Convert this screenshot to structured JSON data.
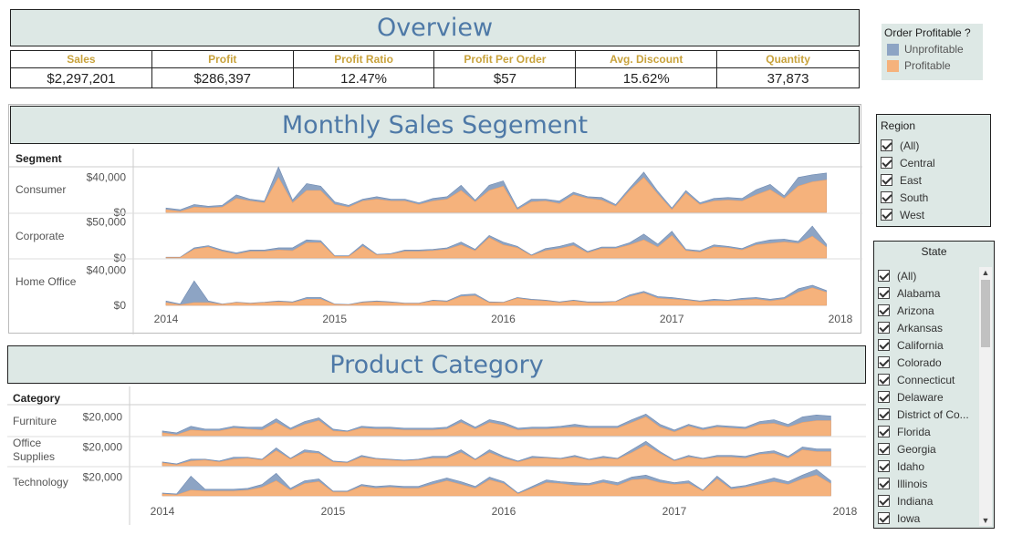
{
  "overview": {
    "title": "Overview"
  },
  "kpis": {
    "headers": [
      "Sales",
      "Profit",
      "Profit Ratio",
      "Profit Per Order",
      "Avg. Discount",
      "Quantity"
    ],
    "values": [
      "$2,297,201",
      "$286,397",
      "12.47%",
      "$57",
      "15.62%",
      "37,873"
    ]
  },
  "legend": {
    "title": "Order Profitable ?",
    "items": [
      {
        "label": "Unprofitable",
        "color": "#8da4c4"
      },
      {
        "label": "Profitable",
        "color": "#f5b27c"
      }
    ]
  },
  "region_filter": {
    "title": "Region",
    "items": [
      "(All)",
      "Central",
      "East",
      "South",
      "West"
    ]
  },
  "state_filter": {
    "title": "State",
    "items": [
      "(All)",
      "Alabama",
      "Arizona",
      "Arkansas",
      "California",
      "Colorado",
      "Connecticut",
      "Delaware",
      "District of Co...",
      "Florida",
      "Georgia",
      "Idaho",
      "Illinois",
      "Indiana",
      "Iowa"
    ]
  },
  "colors": {
    "banner_bg": "#dde8e5",
    "title_blue": "#4e79a7",
    "kpi_gold": "#c8a23b",
    "unprofitable": "#8da4c4",
    "profitable": "#f5b27c"
  },
  "chart_data": [
    {
      "type": "area",
      "title": "Monthly Sales Segement",
      "row_header": "Segment",
      "x": [
        "2014-01",
        "2014-02",
        "2014-03",
        "2014-04",
        "2014-05",
        "2014-06",
        "2014-07",
        "2014-08",
        "2014-09",
        "2014-10",
        "2014-11",
        "2014-12",
        "2015-01",
        "2015-02",
        "2015-03",
        "2015-04",
        "2015-05",
        "2015-06",
        "2015-07",
        "2015-08",
        "2015-09",
        "2015-10",
        "2015-11",
        "2015-12",
        "2016-01",
        "2016-02",
        "2016-03",
        "2016-04",
        "2016-05",
        "2016-06",
        "2016-07",
        "2016-08",
        "2016-09",
        "2016-10",
        "2016-11",
        "2016-12",
        "2017-01",
        "2017-02",
        "2017-03",
        "2017-04",
        "2017-05",
        "2017-06",
        "2017-07",
        "2017-08",
        "2017-09",
        "2017-10",
        "2017-11",
        "2017-12"
      ],
      "x_ticks": [
        "2014",
        "2015",
        "2016",
        "2017",
        "2018"
      ],
      "rows": [
        {
          "label": "Consumer",
          "y_ticks": [
            "$40,000",
            "$0"
          ],
          "ylim": [
            0,
            48000
          ],
          "profitable": [
            3000,
            1000,
            6000,
            5000,
            6000,
            16000,
            13000,
            11000,
            40000,
            11000,
            25000,
            25000,
            9000,
            6000,
            13000,
            15000,
            13000,
            13000,
            9000,
            13000,
            15000,
            25000,
            12000,
            25000,
            30000,
            3000,
            12000,
            13000,
            10000,
            20000,
            16000,
            14000,
            7000,
            25000,
            40000,
            21000,
            3000,
            22000,
            9000,
            13000,
            14000,
            13000,
            20000,
            26000,
            16000,
            30000,
            35000,
            37000
          ],
          "unprofitable": [
            2000,
            2000,
            3000,
            2000,
            2000,
            4000,
            2000,
            2000,
            12000,
            3000,
            8000,
            5000,
            3000,
            2000,
            2000,
            3000,
            2000,
            2000,
            2000,
            3000,
            3000,
            6000,
            2000,
            6000,
            6000,
            2000,
            3000,
            2000,
            3000,
            3000,
            2000,
            3000,
            2000,
            3000,
            6000,
            3000,
            2000,
            3000,
            2000,
            3000,
            3000,
            3000,
            6000,
            6000,
            3000,
            10000,
            8000,
            8000
          ]
        },
        {
          "label": "Corporate",
          "y_ticks": [
            "$50,000",
            "$0"
          ],
          "ylim": [
            0,
            58000
          ],
          "profitable": [
            500,
            500,
            12000,
            15000,
            9000,
            5000,
            9000,
            9000,
            11000,
            10000,
            21000,
            21000,
            2000,
            2000,
            16000,
            4000,
            5000,
            9000,
            9000,
            10000,
            12000,
            18000,
            10000,
            28000,
            18000,
            14000,
            3000,
            10000,
            13000,
            17000,
            7000,
            13000,
            13000,
            18000,
            25000,
            15000,
            31000,
            10000,
            8000,
            15000,
            14000,
            11000,
            18000,
            20000,
            22000,
            20000,
            30000,
            15000
          ],
          "unprofitable": [
            500,
            500,
            2000,
            2000,
            2000,
            2000,
            2000,
            2000,
            3000,
            4000,
            4000,
            3000,
            1000,
            1000,
            3000,
            1000,
            1000,
            2000,
            2000,
            2000,
            2000,
            4000,
            2000,
            3000,
            4000,
            2000,
            1000,
            3000,
            3000,
            4000,
            2000,
            2000,
            2000,
            3000,
            8000,
            4000,
            6000,
            2000,
            2000,
            3000,
            2000,
            2000,
            3000,
            5000,
            4000,
            3000,
            14000,
            4000
          ]
        },
        {
          "label": "Home Office",
          "y_ticks": [
            "$40,000",
            "$0"
          ],
          "ylim": [
            0,
            48000
          ],
          "profitable": [
            3000,
            500,
            3000,
            3000,
            1000,
            3000,
            2000,
            3000,
            4000,
            3000,
            7000,
            7000,
            1000,
            500,
            3000,
            4000,
            3000,
            2000,
            2000,
            5000,
            4000,
            10000,
            11000,
            3000,
            3000,
            8000,
            6000,
            5000,
            3000,
            5000,
            3000,
            3000,
            4000,
            10000,
            14000,
            8000,
            7000,
            6000,
            4000,
            5000,
            5000,
            6000,
            7000,
            5000,
            7000,
            15000,
            20000,
            15000
          ],
          "unprofitable": [
            2000,
            1000,
            25000,
            2000,
            500,
            500,
            500,
            500,
            1000,
            1000,
            2000,
            2000,
            500,
            500,
            1000,
            1000,
            1000,
            500,
            500,
            1000,
            1000,
            2000,
            2000,
            1000,
            500,
            1000,
            1000,
            1000,
            1000,
            1000,
            1000,
            1000,
            500,
            2000,
            2000,
            2000,
            2000,
            1000,
            1000,
            2000,
            1000,
            2000,
            2000,
            2000,
            2000,
            4000,
            3000,
            2000
          ]
        }
      ]
    },
    {
      "type": "area",
      "title": "Product Category",
      "row_header": "Category",
      "x": [
        "2014-01",
        "2014-02",
        "2014-03",
        "2014-04",
        "2014-05",
        "2014-06",
        "2014-07",
        "2014-08",
        "2014-09",
        "2014-10",
        "2014-11",
        "2014-12",
        "2015-01",
        "2015-02",
        "2015-03",
        "2015-04",
        "2015-05",
        "2015-06",
        "2015-07",
        "2015-08",
        "2015-09",
        "2015-10",
        "2015-11",
        "2015-12",
        "2016-01",
        "2016-02",
        "2016-03",
        "2016-04",
        "2016-05",
        "2016-06",
        "2016-07",
        "2016-08",
        "2016-09",
        "2016-10",
        "2016-11",
        "2016-12",
        "2017-01",
        "2017-02",
        "2017-03",
        "2017-04",
        "2017-05",
        "2017-06",
        "2017-07",
        "2017-08",
        "2017-09",
        "2017-10",
        "2017-11",
        "2017-12"
      ],
      "x_ticks": [
        "2014",
        "2015",
        "2016",
        "2017",
        "2018"
      ],
      "rows": [
        {
          "label": "Furniture",
          "y_ticks": [
            "$20,000"
          ],
          "ylim": [
            0,
            33000
          ],
          "profitable": [
            3000,
            1000,
            6000,
            5000,
            5000,
            8000,
            7000,
            6000,
            14000,
            6000,
            12000,
            16000,
            5000,
            4000,
            8000,
            7000,
            7000,
            6000,
            6000,
            6000,
            7000,
            14000,
            7000,
            14000,
            11000,
            6000,
            7000,
            7000,
            8000,
            9000,
            8000,
            8000,
            8000,
            14000,
            20000,
            9000,
            4000,
            10000,
            6000,
            9000,
            8000,
            7000,
            12000,
            13000,
            9000,
            14000,
            16000,
            16000
          ],
          "unprofitable": [
            2000,
            2000,
            4000,
            2000,
            2000,
            2000,
            2000,
            3000,
            4000,
            2000,
            3000,
            3000,
            2000,
            1000,
            2000,
            2000,
            2000,
            2000,
            2000,
            2000,
            2000,
            3000,
            2000,
            3000,
            3000,
            2000,
            2000,
            2000,
            2000,
            3000,
            2000,
            2000,
            2000,
            3000,
            3000,
            3000,
            2000,
            2000,
            2000,
            2000,
            2000,
            2000,
            3000,
            4000,
            3000,
            6000,
            6000,
            5000
          ]
        },
        {
          "label": "Office Supplies",
          "y_ticks": [
            "$20,000"
          ],
          "ylim": [
            0,
            33000
          ],
          "profitable": [
            3000,
            1000,
            5000,
            6000,
            4000,
            7000,
            8000,
            6000,
            16000,
            7000,
            14000,
            13000,
            4000,
            3000,
            9000,
            7000,
            6000,
            5000,
            6000,
            8000,
            8000,
            14000,
            6000,
            14000,
            8000,
            4000,
            8000,
            8000,
            7000,
            9000,
            6000,
            8000,
            7000,
            14000,
            22000,
            13000,
            5000,
            9000,
            7000,
            9000,
            9000,
            8000,
            12000,
            13000,
            8000,
            17000,
            15000,
            15000
          ],
          "unprofitable": [
            1000,
            1000,
            2000,
            1000,
            1000,
            2000,
            1000,
            1000,
            3000,
            1000,
            3000,
            2000,
            1000,
            1000,
            2000,
            1000,
            1000,
            1000,
            1000,
            2000,
            2000,
            3000,
            1000,
            3000,
            2000,
            1000,
            2000,
            1000,
            1000,
            2000,
            1000,
            2000,
            1000,
            3000,
            4000,
            2000,
            1000,
            2000,
            1000,
            2000,
            2000,
            2000,
            2000,
            3000,
            2000,
            3000,
            3000,
            3000
          ]
        },
        {
          "label": "Technology",
          "y_ticks": [
            "$20,000"
          ],
          "ylim": [
            0,
            33000
          ],
          "profitable": [
            2000,
            1000,
            6000,
            5000,
            5000,
            5000,
            6000,
            9000,
            16000,
            6000,
            13000,
            15000,
            4000,
            4000,
            10000,
            8000,
            9000,
            8000,
            8000,
            12000,
            16000,
            12000,
            8000,
            17000,
            13000,
            2000,
            8000,
            14000,
            13000,
            11000,
            11000,
            14000,
            11000,
            17000,
            18000,
            14000,
            12000,
            13000,
            5000,
            18000,
            7000,
            9000,
            12000,
            15000,
            12000,
            18000,
            22000,
            13000
          ],
          "unprofitable": [
            1000,
            1000,
            15000,
            2000,
            2000,
            2000,
            2000,
            3000,
            8000,
            2000,
            3000,
            3000,
            1000,
            1000,
            2000,
            2000,
            2000,
            2000,
            2000,
            3000,
            3000,
            3000,
            2000,
            3000,
            2000,
            1000,
            2000,
            3000,
            2000,
            3000,
            2000,
            3000,
            3000,
            3000,
            4000,
            3000,
            2000,
            3000,
            1000,
            3000,
            2000,
            2000,
            3000,
            4000,
            3000,
            4000,
            6000,
            3000
          ]
        }
      ]
    }
  ]
}
